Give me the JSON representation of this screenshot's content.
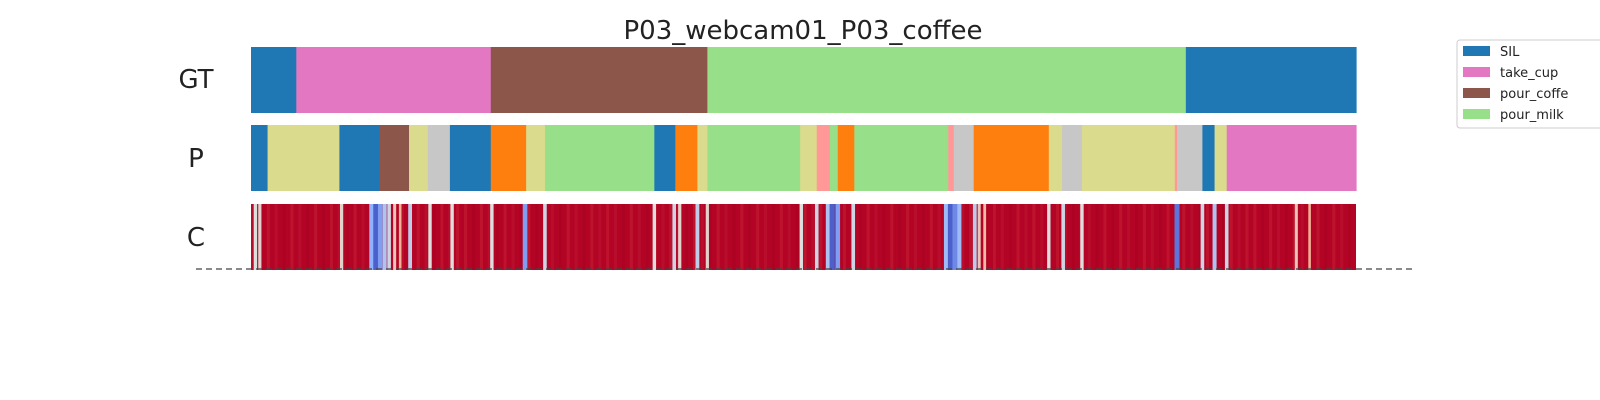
{
  "chart_data": {
    "type": "segmentation-timeline",
    "title": "P03_webcam01_P03_coffee",
    "x_range": [
      0,
      1000
    ],
    "rows": [
      {
        "label": "GT",
        "segments": [
          {
            "start": 0,
            "end": 41,
            "label": "SIL"
          },
          {
            "start": 41,
            "end": 217,
            "label": "take_cup"
          },
          {
            "start": 217,
            "end": 413,
            "label": "pour_coffee"
          },
          {
            "start": 413,
            "end": 846,
            "label": "pour_milk"
          },
          {
            "start": 846,
            "end": 1000,
            "label": "SIL"
          }
        ]
      },
      {
        "label": "P",
        "segments": [
          {
            "start": 0,
            "end": 15,
            "color": "#1f77b4"
          },
          {
            "start": 15,
            "end": 80,
            "color": "#dbdb8d"
          },
          {
            "start": 80,
            "end": 116,
            "color": "#1f77b4"
          },
          {
            "start": 116,
            "end": 143,
            "color": "#8c564b"
          },
          {
            "start": 143,
            "end": 160,
            "color": "#dbdb8d"
          },
          {
            "start": 160,
            "end": 180,
            "color": "#c7c7c7"
          },
          {
            "start": 180,
            "end": 217,
            "color": "#1f77b4"
          },
          {
            "start": 217,
            "end": 249,
            "color": "#ff7f0e"
          },
          {
            "start": 249,
            "end": 266,
            "color": "#dbdb8d"
          },
          {
            "start": 266,
            "end": 365,
            "color": "#98df8a"
          },
          {
            "start": 365,
            "end": 384,
            "color": "#1f77b4"
          },
          {
            "start": 384,
            "end": 404,
            "color": "#ff7f0e"
          },
          {
            "start": 404,
            "end": 413,
            "color": "#dbdb8d"
          },
          {
            "start": 413,
            "end": 497,
            "color": "#98df8a"
          },
          {
            "start": 497,
            "end": 512,
            "color": "#dbdb8d"
          },
          {
            "start": 512,
            "end": 524,
            "color": "#ff9896"
          },
          {
            "start": 524,
            "end": 531,
            "color": "#98df8a"
          },
          {
            "start": 531,
            "end": 546,
            "color": "#ff7f0e"
          },
          {
            "start": 546,
            "end": 631,
            "color": "#98df8a"
          },
          {
            "start": 631,
            "end": 636,
            "color": "#ff9896"
          },
          {
            "start": 636,
            "end": 654,
            "color": "#c7c7c7"
          },
          {
            "start": 654,
            "end": 722,
            "color": "#ff7f0e"
          },
          {
            "start": 722,
            "end": 734,
            "color": "#dbdb8d"
          },
          {
            "start": 734,
            "end": 752,
            "color": "#c7c7c7"
          },
          {
            "start": 752,
            "end": 836,
            "color": "#dbdb8d"
          },
          {
            "start": 836,
            "end": 838,
            "color": "#ff9896"
          },
          {
            "start": 838,
            "end": 861,
            "color": "#c7c7c7"
          },
          {
            "start": 861,
            "end": 872,
            "color": "#1f77b4"
          },
          {
            "start": 872,
            "end": 883,
            "color": "#dbdb8d"
          },
          {
            "start": 883,
            "end": 1000,
            "color": "#e377c2"
          }
        ]
      },
      {
        "label": "C",
        "colormap": "coolwarm",
        "low_confidence_marks": [
          {
            "at": 4,
            "level": 0.5
          },
          {
            "at": 8,
            "level": 0.55
          },
          {
            "at": 82,
            "level": 0.55
          },
          {
            "at": 109,
            "level": 0.25
          },
          {
            "at": 113,
            "level": 0.05
          },
          {
            "at": 117,
            "level": 0.2
          },
          {
            "at": 121,
            "level": 0.35
          },
          {
            "at": 125,
            "level": 0.45
          },
          {
            "at": 130,
            "level": 0.6
          },
          {
            "at": 135,
            "level": 0.7
          },
          {
            "at": 144,
            "level": 0.4
          },
          {
            "at": 162,
            "level": 0.5
          },
          {
            "at": 182,
            "level": 0.5
          },
          {
            "at": 218,
            "level": 0.5
          },
          {
            "at": 248,
            "level": 0.2
          },
          {
            "at": 266,
            "level": 0.45
          },
          {
            "at": 365,
            "level": 0.5
          },
          {
            "at": 383,
            "level": 0.45
          },
          {
            "at": 388,
            "level": 0.55
          },
          {
            "at": 404,
            "level": 0.4
          },
          {
            "at": 413,
            "level": 0.55
          },
          {
            "at": 498,
            "level": 0.5
          },
          {
            "at": 512,
            "level": 0.45
          },
          {
            "at": 522,
            "level": 0.35
          },
          {
            "at": 526,
            "level": 0.05
          },
          {
            "at": 531,
            "level": 0.2
          },
          {
            "at": 545,
            "level": 0.45
          },
          {
            "at": 629,
            "level": 0.3
          },
          {
            "at": 633,
            "level": 0.05
          },
          {
            "at": 637,
            "level": 0.15
          },
          {
            "at": 641,
            "level": 0.3
          },
          {
            "at": 655,
            "level": 0.4
          },
          {
            "at": 659,
            "level": 0.6
          },
          {
            "at": 664,
            "level": 0.65
          },
          {
            "at": 722,
            "level": 0.5
          },
          {
            "at": 735,
            "level": 0.45
          },
          {
            "at": 752,
            "level": 0.5
          },
          {
            "at": 838,
            "level": 0.1
          },
          {
            "at": 861,
            "level": 0.45
          },
          {
            "at": 872,
            "level": 0.35
          },
          {
            "at": 883,
            "level": 0.45
          },
          {
            "at": 946,
            "level": 0.6
          },
          {
            "at": 958,
            "level": 0.7
          }
        ]
      }
    ],
    "legend": {
      "position": "top-right",
      "entries": [
        {
          "label": "SIL",
          "color": "#1f77b4"
        },
        {
          "label": "take_cup",
          "color": "#e377c2"
        },
        {
          "label": "pour_coffe",
          "color": "#8c564b"
        },
        {
          "label": "pour_milk",
          "color": "#98df8a"
        }
      ]
    },
    "class_colors": {
      "SIL": "#1f77b4",
      "take_cup": "#e377c2",
      "pour_coffee": "#8c564b",
      "pour_milk": "#98df8a"
    },
    "baseline": "dashed"
  }
}
